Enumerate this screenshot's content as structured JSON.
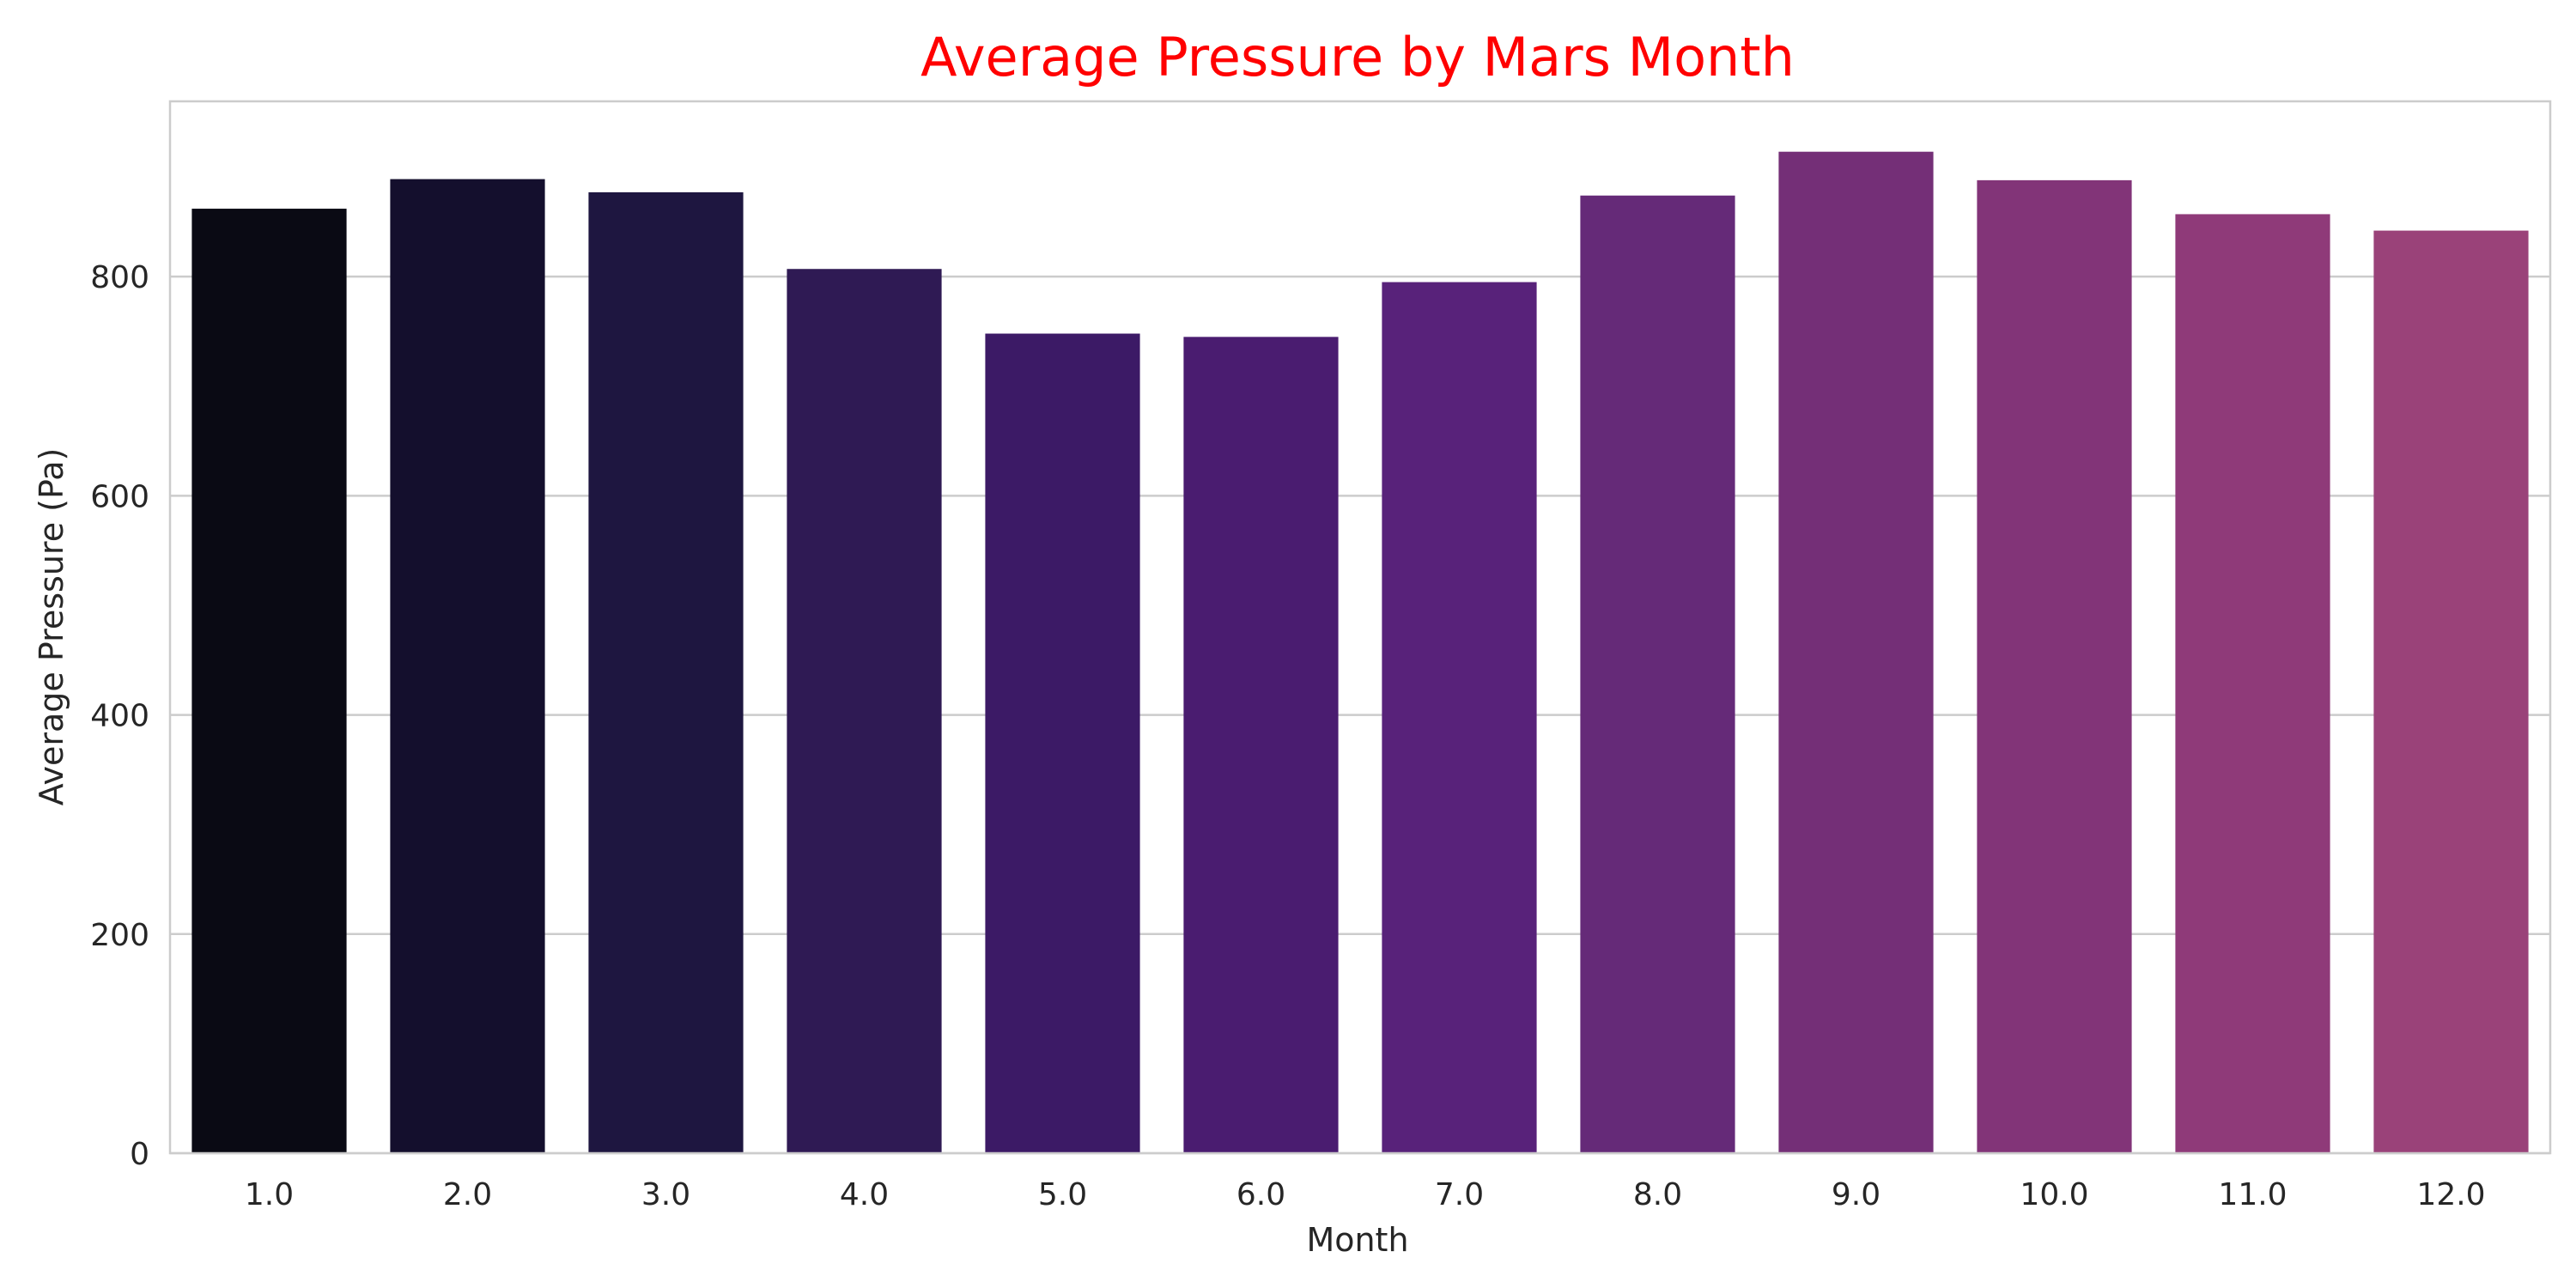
{
  "chart_data": {
    "type": "bar",
    "title": "Average Pressure by Mars Month",
    "xlabel": "Month",
    "ylabel": "Average Pressure (Pa)",
    "categories": [
      "1.0",
      "2.0",
      "3.0",
      "4.0",
      "5.0",
      "6.0",
      "7.0",
      "8.0",
      "9.0",
      "10.0",
      "11.0",
      "12.0"
    ],
    "values": [
      862,
      889,
      877,
      807,
      748,
      745,
      795,
      874,
      914,
      888,
      857,
      842
    ],
    "colors": [
      "#0a0a14",
      "#140f2d",
      "#1e1640",
      "#2f1a54",
      "#3c1a66",
      "#4a1c70",
      "#58227a",
      "#652a78",
      "#742f77",
      "#823478",
      "#8f3a79",
      "#9a4279"
    ],
    "ylim": [
      0,
      960
    ],
    "yticks": [
      0,
      200,
      400,
      600,
      800
    ],
    "grid": "y",
    "legend": "none"
  }
}
